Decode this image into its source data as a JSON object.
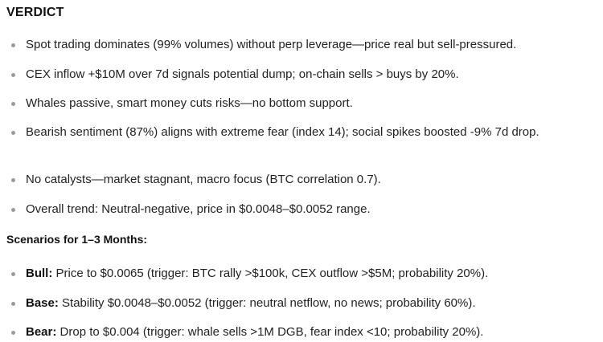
{
  "verdict": {
    "title": "VERDICT",
    "items": [
      "Spot trading dominates (99% volumes) without perp leverage—price real but sell-pressured.",
      "CEX inflow +$10M over 7d signals potential dump; on-chain sells > buys by 20%.",
      "Whales passive, smart money cuts risks—no bottom support.",
      "Bearish sentiment (87%) aligns with extreme fear (index 14); social spikes boosted -9% 7d drop.",
      "No catalysts—market stagnant, macro focus (BTC correlation 0.7).",
      "Overall trend: Neutral-negative, price in $0.0048–$0.0052 range."
    ]
  },
  "scenarios": {
    "title": "Scenarios for 1–3 Months:",
    "items": [
      {
        "label": "Bull:",
        "text": " Price to $0.0065 (trigger: BTC rally >$100k, CEX outflow >$5M; probability 20%)."
      },
      {
        "label": "Base:",
        "text": " Stability $0.0048–$0.0052 (trigger: neutral netflow, no news; probability 60%)."
      },
      {
        "label": "Bear:",
        "text": " Drop to $0.004 (trigger: whale sells >1M DGB, fear index <10; probability 20%)."
      }
    ]
  }
}
